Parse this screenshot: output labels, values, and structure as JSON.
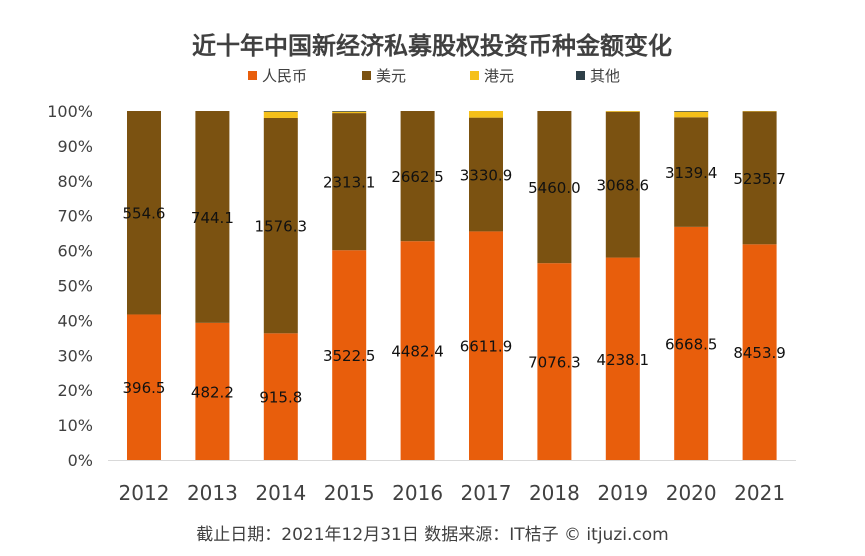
{
  "footer": "截止日期：2021年12月31日   数据来源：IT桔子 © itjuzi.com",
  "chart_data": {
    "type": "bar",
    "stacked": "percent",
    "title": "近十年中国新经济私募股权投资币种金额变化",
    "categories": [
      "2012",
      "2013",
      "2014",
      "2015",
      "2016",
      "2017",
      "2018",
      "2019",
      "2020",
      "2021"
    ],
    "y_ticks": [
      "0%",
      "10%",
      "20%",
      "30%",
      "40%",
      "50%",
      "60%",
      "70%",
      "80%",
      "90%",
      "100%"
    ],
    "ylim": [
      0,
      100
    ],
    "legend_position": "top",
    "grid": false,
    "series": [
      {
        "name": "人民币",
        "color": "#E85E0C",
        "percent": [
          41.7,
          39.3,
          36.3,
          60.1,
          62.7,
          65.5,
          56.4,
          58.0,
          66.8,
          61.8
        ],
        "labels": [
          "396.5",
          "482.2",
          "915.8",
          "3522.5",
          "4482.4",
          "6611.9",
          "7076.3",
          "4238.1",
          "6668.5",
          "8453.9"
        ]
      },
      {
        "name": "美元",
        "color": "#7B5211",
        "percent": [
          58.3,
          60.7,
          61.7,
          39.3,
          37.3,
          32.6,
          43.6,
          41.8,
          31.4,
          38.1
        ],
        "labels": [
          "554.6",
          "744.1",
          "1576.3",
          "2313.1",
          "2662.5",
          "3330.9",
          "5460.0",
          "3068.6",
          "3139.4",
          "5235.7"
        ]
      },
      {
        "name": "港元",
        "color": "#F5C01A",
        "percent": [
          0,
          0,
          1.8,
          0.4,
          0,
          1.9,
          0,
          0.2,
          1.6,
          0.1
        ],
        "labels": []
      },
      {
        "name": "其他",
        "color": "#2E3F48",
        "percent": [
          0,
          0,
          0.2,
          0.2,
          0,
          0,
          0,
          0,
          0.2,
          0
        ],
        "labels": []
      }
    ]
  }
}
